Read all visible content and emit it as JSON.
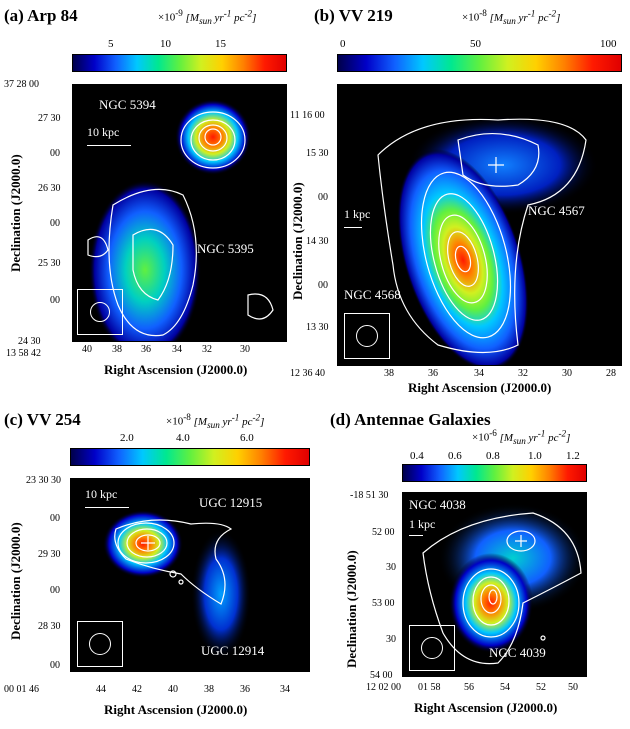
{
  "colors": {
    "background": "#000000",
    "contour": "#ffffff"
  },
  "panels": [
    {
      "id": "a",
      "title": "(a) Arp 84",
      "unit_mult": "×10",
      "unit_exp": "-9",
      "unit": "[M",
      "unit_sub": "sun",
      "unit_tail": " yr",
      "unit_tail_exp": "-1",
      "unit_end": " pc",
      "unit_end_exp": "-2",
      "unit_close": "]",
      "colorbar_ticks": [
        "5",
        "10",
        "15"
      ],
      "ylabel": "Declination (J2000.0)",
      "xlabel": "Right Ascension (J2000.0)",
      "yticks": [
        "37 28 00",
        "27 30",
        "00",
        "26 30",
        "00",
        "25 30",
        "00",
        "24 30"
      ],
      "xticks": [
        "13 58 42",
        "40",
        "38",
        "36",
        "34",
        "32",
        "30"
      ],
      "galaxies": [
        "NGC 5394",
        "NGC 5395"
      ],
      "scalebar": "10 kpc"
    },
    {
      "id": "b",
      "title": "(b) VV 219",
      "unit_mult": "×10",
      "unit_exp": "-8",
      "unit": "[M",
      "unit_sub": "sun",
      "unit_tail": " yr",
      "unit_tail_exp": "-1",
      "unit_end": " pc",
      "unit_end_exp": "-2",
      "unit_close": "]",
      "colorbar_ticks": [
        "0",
        "50",
        "100"
      ],
      "ylabel": "Declination (J2000.0)",
      "xlabel": "Right Ascension (J2000.0)",
      "yticks": [
        "11 16 00",
        "15 30",
        "00",
        "14 30",
        "00",
        "13 30"
      ],
      "xticks": [
        "12 36 40",
        "38",
        "36",
        "34",
        "32",
        "30",
        "28"
      ],
      "galaxies": [
        "NGC 4567",
        "NGC 4568"
      ],
      "scalebar": "1 kpc"
    },
    {
      "id": "c",
      "title": "(c) VV 254",
      "unit_mult": "×10",
      "unit_exp": "-8",
      "unit": "[M",
      "unit_sub": "sun",
      "unit_tail": " yr",
      "unit_tail_exp": "-1",
      "unit_end": " pc",
      "unit_end_exp": "-2",
      "unit_close": "]",
      "colorbar_ticks": [
        "2.0",
        "4.0",
        "6.0"
      ],
      "ylabel": "Declination (J2000.0)",
      "xlabel": "Right Ascension (J2000.0)",
      "yticks": [
        "23 30 30",
        "00",
        "29 30",
        "00",
        "28 30",
        "00"
      ],
      "xticks": [
        "00 01 46",
        "44",
        "42",
        "40",
        "38",
        "36",
        "34"
      ],
      "galaxies": [
        "UGC 12915",
        "UGC 12914"
      ],
      "scalebar": "10 kpc"
    },
    {
      "id": "d",
      "title": "(d) Antennae Galaxies",
      "unit_mult": "×10",
      "unit_exp": "-6",
      "unit": "[M",
      "unit_sub": "sun",
      "unit_tail": " yr",
      "unit_tail_exp": "-1",
      "unit_end": " pc",
      "unit_end_exp": "-2",
      "unit_close": "]",
      "colorbar_ticks": [
        "0.4",
        "0.6",
        "0.8",
        "1.0",
        "1.2"
      ],
      "ylabel": "Declination (J2000.0)",
      "xlabel": "Right Ascension (J2000.0)",
      "yticks": [
        "-18 51 30",
        "52 00",
        "30",
        "53 00",
        "30",
        "54 00"
      ],
      "xticks": [
        "12 02 00",
        "01 58",
        "56",
        "54",
        "52",
        "50"
      ],
      "galaxies": [
        "NGC 4038",
        "NGC 4039"
      ],
      "scalebar": "1 kpc"
    }
  ]
}
